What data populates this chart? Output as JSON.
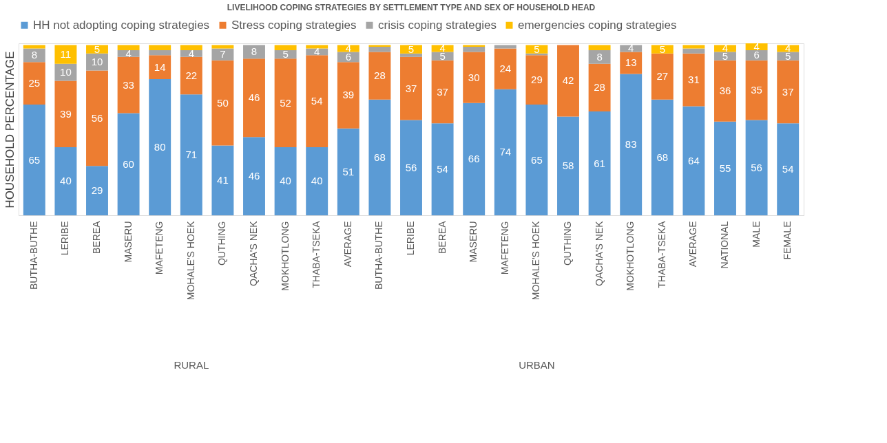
{
  "chart_data": {
    "type": "bar",
    "stacked": true,
    "title": "LIVELIHOOD COPING STRATEGIES BY SETTLEMENT TYPE AND SEX OF HOUSEHOLD HEAD",
    "ylabel": "HOUSEHOLD PERCENTAGE",
    "categories": [
      "BUTHA-BUTHE",
      "LERIBE",
      "BEREA",
      "MASERU",
      "MAFETENG",
      "MOHALE'S HOEK",
      "QUTHING",
      "QACHA'S NEK",
      "MOKHOTLONG",
      "THABA-TSEKA",
      "AVERAGE",
      "BUTHA-BUTHE",
      "LERIBE",
      "BEREA",
      "MASERU",
      "MAFETENG",
      "MOHALE'S HOEK",
      "QUTHING",
      "QACHA'S NEK",
      "MOKHOTLONG",
      "THABA-TSEKA",
      "AVERAGE",
      "NATIONAL",
      "MALE",
      "FEMALE"
    ],
    "series": [
      {
        "name": "HH not adopting coping strategies",
        "color": "#5b9bd5",
        "values": [
          65,
          40,
          29,
          60,
          80,
          71,
          41,
          46,
          40,
          40,
          51,
          68,
          56,
          54,
          66,
          74,
          65,
          58,
          61,
          83,
          68,
          64,
          55,
          56,
          54
        ],
        "value_labels": [
          "65",
          "40",
          "29",
          "60",
          "80",
          "71",
          "41",
          "46",
          "40",
          "40",
          "51",
          "68",
          "56",
          "54",
          "66",
          "74",
          "65",
          "58",
          "61",
          "83",
          "68",
          "64",
          "55",
          "56",
          "54"
        ]
      },
      {
        "name": "Stress coping strategies",
        "color": "#ed7d31",
        "values": [
          25,
          39,
          56,
          33,
          14,
          22,
          50,
          46,
          52,
          54,
          39,
          28,
          37,
          37,
          30,
          24,
          29,
          42,
          28,
          13,
          27,
          31,
          36,
          35,
          37
        ],
        "value_labels": [
          "25",
          "39",
          "56",
          "33",
          "14",
          "22",
          "50",
          "46",
          "52",
          "54",
          "39",
          "28",
          "37",
          "37",
          "30",
          "24",
          "29",
          "42",
          "28",
          "13",
          "27",
          "31",
          "36",
          "35",
          "37"
        ]
      },
      {
        "name": "crisis coping strategies",
        "color": "#a5a5a5",
        "values": [
          8,
          10,
          10,
          4,
          3,
          4,
          7,
          8,
          5,
          4,
          6,
          3,
          2,
          5,
          3,
          2,
          1,
          0,
          8,
          4,
          0,
          3,
          5,
          6,
          5
        ],
        "value_labels": [
          "8",
          "10",
          "10",
          "4",
          null,
          "4",
          "7",
          "8",
          "5",
          "4",
          "6",
          null,
          null,
          "5",
          null,
          null,
          null,
          null,
          "8",
          "4",
          null,
          null,
          "5",
          "6",
          "5"
        ]
      },
      {
        "name": "emergencies coping strategies",
        "color": "#ffc000",
        "values": [
          2,
          11,
          5,
          3,
          3,
          3,
          2,
          0,
          3,
          2,
          4,
          1,
          5,
          4,
          1,
          0,
          5,
          0,
          3,
          0,
          5,
          2,
          4,
          4,
          4
        ],
        "value_labels": [
          null,
          "11",
          "5",
          null,
          null,
          null,
          null,
          null,
          null,
          null,
          "4",
          null,
          "5",
          "4",
          null,
          null,
          "5",
          null,
          null,
          null,
          "5",
          null,
          "4",
          "4",
          "4"
        ]
      }
    ],
    "ylim": [
      0,
      101
    ],
    "legend": "top",
    "grid": false,
    "tick_labels": "x",
    "annotations": [
      "RURAL",
      "URBAN"
    ]
  }
}
